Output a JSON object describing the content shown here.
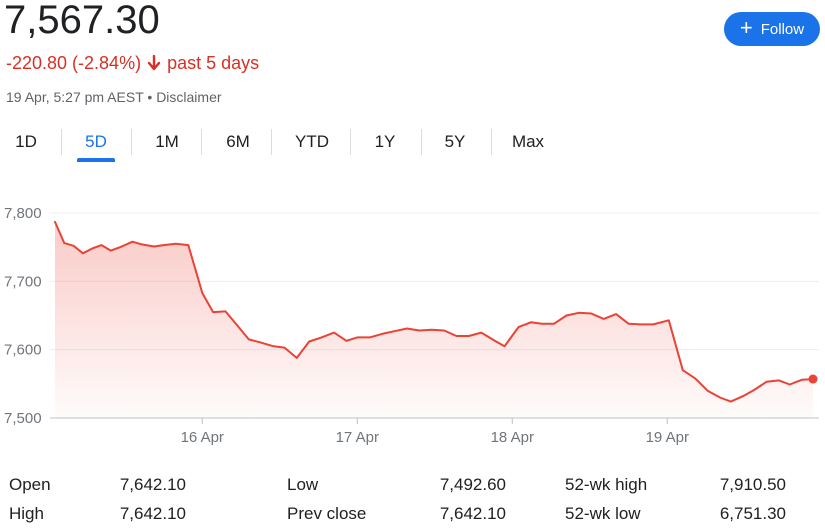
{
  "header": {
    "price": "7,567.30",
    "change_text": "-220.80 (-2.84%)",
    "period": "past 5 days",
    "timestamp": "19 Apr, 5:27 pm AEST",
    "separator": " • ",
    "disclaimer": "Disclaimer",
    "negative_color": "#d93025"
  },
  "follow_button": {
    "icon": "plus-icon",
    "label": "Follow",
    "color": "#1a73e8"
  },
  "tabs": [
    {
      "label": "1D",
      "active": false
    },
    {
      "label": "5D",
      "active": true
    },
    {
      "label": "1M",
      "active": false
    },
    {
      "label": "6M",
      "active": false
    },
    {
      "label": "YTD",
      "active": false
    },
    {
      "label": "1Y",
      "active": false
    },
    {
      "label": "5Y",
      "active": false
    },
    {
      "label": "Max",
      "active": false
    }
  ],
  "stats": {
    "open_label": "Open",
    "open_value": "7,642.10",
    "high_label": "High",
    "high_value": "7,642.10",
    "low_label": "Low",
    "low_value": "7,492.60",
    "prev_close_label": "Prev close",
    "prev_close_value": "7,642.10",
    "wk52_high_label": "52-wk high",
    "wk52_high_value": "7,910.50",
    "wk52_low_label": "52-wk low",
    "wk52_low_value": "6,751.30"
  },
  "chart_data": {
    "type": "area",
    "line_color": "#ea4335",
    "y_ticks": [
      7800,
      7700,
      7600,
      7500
    ],
    "y_tick_labels": [
      "7,800",
      "7,700",
      "7,600",
      "7,500"
    ],
    "ylim": [
      7500,
      7800
    ],
    "x_tick_labels": [
      "16 Apr",
      "17 Apr",
      "18 Apr",
      "19 Apr"
    ],
    "x_tick_positions": [
      4,
      9,
      14,
      19
    ],
    "x_range": [
      -0.75,
      23.7
    ],
    "points": [
      [
        -0.75,
        7787
      ],
      [
        -0.45,
        7756
      ],
      [
        -0.15,
        7752
      ],
      [
        0.15,
        7741
      ],
      [
        0.45,
        7748
      ],
      [
        0.75,
        7753
      ],
      [
        1.05,
        7745
      ],
      [
        1.35,
        7750
      ],
      [
        1.75,
        7758
      ],
      [
        2.05,
        7754
      ],
      [
        2.45,
        7751
      ],
      [
        2.75,
        7753
      ],
      [
        3.15,
        7755
      ],
      [
        3.55,
        7753
      ],
      [
        4.0,
        7683
      ],
      [
        4.35,
        7655
      ],
      [
        4.75,
        7656
      ],
      [
        5.1,
        7637
      ],
      [
        5.5,
        7615
      ],
      [
        5.85,
        7611
      ],
      [
        6.3,
        7605
      ],
      [
        6.65,
        7603
      ],
      [
        7.05,
        7588
      ],
      [
        7.45,
        7612
      ],
      [
        7.85,
        7618
      ],
      [
        8.25,
        7625
      ],
      [
        8.65,
        7613
      ],
      [
        9.0,
        7618
      ],
      [
        9.4,
        7618
      ],
      [
        9.8,
        7623
      ],
      [
        10.2,
        7627
      ],
      [
        10.6,
        7631
      ],
      [
        11.0,
        7628
      ],
      [
        11.4,
        7629
      ],
      [
        11.8,
        7628
      ],
      [
        12.2,
        7620
      ],
      [
        12.6,
        7620
      ],
      [
        13.0,
        7625
      ],
      [
        13.4,
        7614
      ],
      [
        13.75,
        7605
      ],
      [
        14.2,
        7633
      ],
      [
        14.6,
        7640
      ],
      [
        14.95,
        7638
      ],
      [
        15.35,
        7638
      ],
      [
        15.75,
        7650
      ],
      [
        16.15,
        7654
      ],
      [
        16.55,
        7653
      ],
      [
        16.95,
        7645
      ],
      [
        17.35,
        7652
      ],
      [
        17.75,
        7638
      ],
      [
        18.15,
        7637
      ],
      [
        18.55,
        7637
      ],
      [
        19.05,
        7643
      ],
      [
        19.5,
        7570
      ],
      [
        19.9,
        7558
      ],
      [
        20.3,
        7540
      ],
      [
        20.7,
        7530
      ],
      [
        21.05,
        7524
      ],
      [
        21.45,
        7532
      ],
      [
        21.8,
        7541
      ],
      [
        22.2,
        7553
      ],
      [
        22.6,
        7555
      ],
      [
        22.95,
        7549
      ],
      [
        23.35,
        7556
      ],
      [
        23.7,
        7557
      ]
    ],
    "grid": true
  }
}
